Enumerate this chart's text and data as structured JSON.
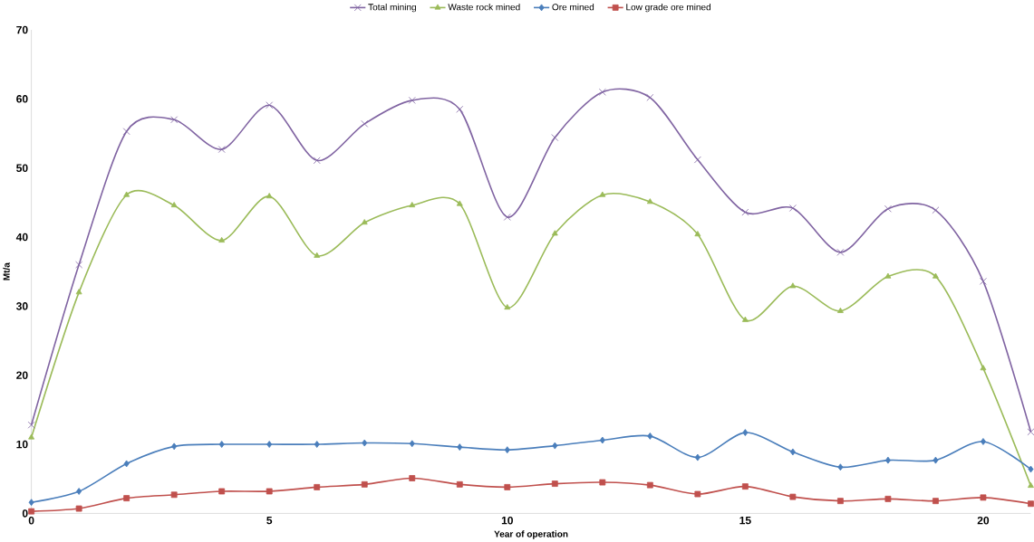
{
  "chart_data": {
    "type": "line",
    "xlabel": "Year of operation",
    "ylabel": "Mt/a",
    "x": [
      0,
      1,
      2,
      3,
      4,
      5,
      6,
      7,
      8,
      9,
      10,
      11,
      12,
      13,
      14,
      15,
      16,
      17,
      18,
      19,
      20,
      21
    ],
    "xlim": [
      0,
      21
    ],
    "xticks": [
      0,
      5,
      10,
      15,
      20
    ],
    "ylim": [
      0,
      70
    ],
    "yticks": [
      0,
      10,
      20,
      30,
      40,
      50,
      60,
      70
    ],
    "grid": false,
    "legend": "top",
    "series": [
      {
        "name": "Total mining",
        "color": "#8064a2",
        "marker": "cross",
        "values": [
          12.8,
          36,
          55.3,
          57,
          52.7,
          59.1,
          51.1,
          56.4,
          59.8,
          58.5,
          42.9,
          54.4,
          61,
          60.2,
          51.2,
          43.6,
          44.2,
          37.8,
          44.1,
          43.9,
          33.6,
          11.8
        ]
      },
      {
        "name": "Waste rock mined",
        "color": "#9bbb59",
        "marker": "triangle",
        "values": [
          11,
          32,
          46.1,
          44.6,
          39.5,
          45.9,
          37.3,
          42.1,
          44.6,
          44.8,
          29.8,
          40.5,
          46.1,
          45.1,
          40.4,
          28,
          32.9,
          29.3,
          34.3,
          34.3,
          21,
          4
        ]
      },
      {
        "name": "Ore mined",
        "color": "#4a7ebb",
        "marker": "diamond",
        "values": [
          1.6,
          3.2,
          7.2,
          9.7,
          10,
          10,
          10,
          10.2,
          10.1,
          9.6,
          9.2,
          9.8,
          10.6,
          11.2,
          8.1,
          11.7,
          8.9,
          6.7,
          7.7,
          7.7,
          10.4,
          6.4
        ]
      },
      {
        "name": "Low grade ore mined",
        "color": "#c0504d",
        "marker": "square",
        "values": [
          0.3,
          0.7,
          2.2,
          2.7,
          3.2,
          3.2,
          3.8,
          4.2,
          5.1,
          4.2,
          3.8,
          4.3,
          4.5,
          4.1,
          2.8,
          3.9,
          2.4,
          1.8,
          2.1,
          1.8,
          2.3,
          1.4
        ]
      }
    ]
  }
}
